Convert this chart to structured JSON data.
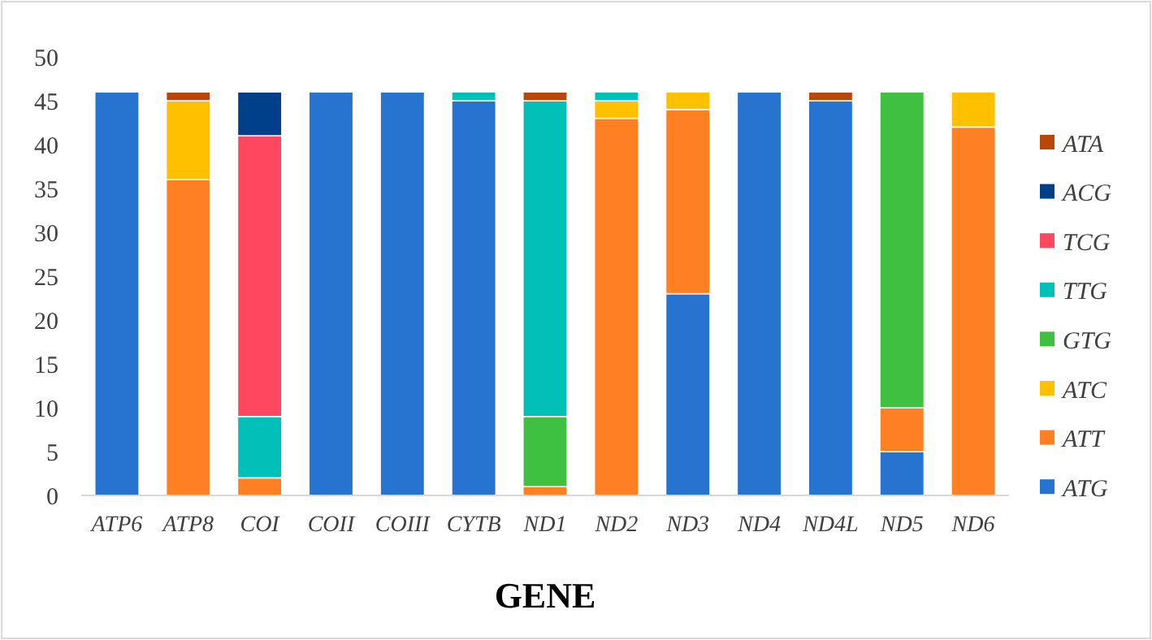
{
  "chart_data": {
    "type": "bar",
    "stacked": true,
    "xlabel": "GENE",
    "categories": [
      "ATP6",
      "ATP8",
      "COI",
      "COII",
      "COIII",
      "CYTB",
      "ND1",
      "ND2",
      "ND3",
      "ND4",
      "ND4L",
      "ND5",
      "ND6"
    ],
    "series": [
      {
        "name": "ATG",
        "color": "#2673d0",
        "values": [
          46,
          0,
          0,
          46,
          46,
          45,
          0,
          0,
          23,
          46,
          45,
          5,
          0
        ]
      },
      {
        "name": "ATT",
        "color": "#ff8023",
        "values": [
          0,
          36,
          2,
          0,
          0,
          0,
          1,
          43,
          21,
          0,
          0,
          5,
          42
        ]
      },
      {
        "name": "ATC",
        "color": "#ffc000",
        "values": [
          0,
          9,
          0,
          0,
          0,
          0,
          0,
          2,
          2,
          0,
          0,
          0,
          4
        ]
      },
      {
        "name": "GTG",
        "color": "#40c040",
        "values": [
          0,
          0,
          0,
          0,
          0,
          0,
          8,
          0,
          0,
          0,
          0,
          36,
          0
        ]
      },
      {
        "name": "TTG",
        "color": "#00c0b8",
        "values": [
          0,
          0,
          7,
          0,
          0,
          1,
          36,
          1,
          0,
          0,
          0,
          0,
          0
        ]
      },
      {
        "name": "TCG",
        "color": "#ff4860",
        "values": [
          0,
          0,
          32,
          0,
          0,
          0,
          0,
          0,
          0,
          0,
          0,
          0,
          0
        ]
      },
      {
        "name": "ACG",
        "color": "#003f8a",
        "values": [
          0,
          0,
          5,
          0,
          0,
          0,
          0,
          0,
          0,
          0,
          0,
          0,
          0
        ]
      },
      {
        "name": "ATA",
        "color": "#b8470a",
        "values": [
          0,
          1,
          0,
          0,
          0,
          0,
          1,
          0,
          0,
          0,
          1,
          0,
          0
        ]
      }
    ],
    "ylim": [
      0,
      50
    ],
    "yticks": [
      0,
      5,
      10,
      15,
      20,
      25,
      30,
      35,
      40,
      45,
      50
    ],
    "grid": false,
    "legend": "right"
  }
}
